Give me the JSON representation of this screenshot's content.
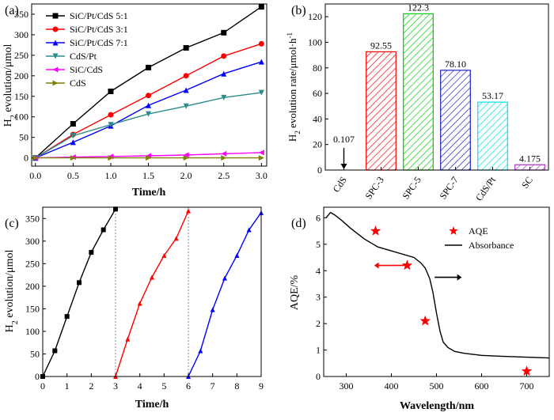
{
  "colors": {
    "black": "#000000",
    "red": "#ff0000",
    "blue": "#0000ff",
    "teal": "#2e8b8b",
    "magenta": "#ff00ff",
    "olive": "#808000",
    "green": "#00cc00",
    "cyan": "#00e5e5",
    "purple": "#b030d0",
    "navy": "#2020c0"
  },
  "chart_data": [
    {
      "panel": "(a)",
      "type": "line",
      "xlabel": "Time/h",
      "ylabel": "H2 evolution/μmol",
      "xlim": [
        0,
        3
      ],
      "ylim": [
        -20,
        375
      ],
      "xticks": [
        "0.0",
        "0.5",
        "1.0",
        "1.5",
        "2.0",
        "2.5",
        "3.0"
      ],
      "yticks": [
        "0",
        "50",
        "100",
        "150",
        "200",
        "250",
        "300",
        "350"
      ],
      "legend_position": "top-left",
      "x": [
        0,
        0.5,
        1.0,
        1.5,
        2.0,
        2.5,
        3.0
      ],
      "series": [
        {
          "name": "SiC/Pt/CdS 5:1",
          "marker": "square",
          "color": "#000000",
          "values": [
            0,
            83,
            162,
            220,
            268,
            305,
            368
          ]
        },
        {
          "name": "SiC/Pt/CdS 3:1",
          "marker": "circle",
          "color": "#ff0000",
          "values": [
            0,
            57,
            105,
            152,
            200,
            248,
            278
          ]
        },
        {
          "name": "SiC/Pt/CdS 7:1",
          "marker": "triangle-up",
          "color": "#0000ff",
          "values": [
            0,
            38,
            78,
            128,
            165,
            205,
            234
          ]
        },
        {
          "name": "CdS/Pt",
          "marker": "triangle-down",
          "color": "#2e8b8b",
          "values": [
            0,
            54,
            81,
            107,
            126,
            147,
            159
          ]
        },
        {
          "name": "SiC/CdS",
          "marker": "triangle-left",
          "color": "#ff00ff",
          "values": [
            0,
            2,
            3.5,
            5,
            7,
            10,
            13
          ]
        },
        {
          "name": "CdS",
          "marker": "triangle-right",
          "color": "#808000",
          "values": [
            0,
            0,
            0,
            0,
            0,
            0,
            0
          ]
        }
      ]
    },
    {
      "panel": "(b)",
      "type": "bar",
      "ylabel": "H2 evolution rate/μmol·h-1",
      "ylim": [
        0,
        130
      ],
      "yticks": [
        "0",
        "20",
        "40",
        "60",
        "80",
        "100",
        "120"
      ],
      "categories": [
        "CdS",
        "SPC-3",
        "SPC-5",
        "SPC-7",
        "CdS/Pt",
        "SC"
      ],
      "values": [
        0.107,
        92.55,
        122.3,
        78.1,
        53.17,
        4.175
      ],
      "data_labels": [
        "0.107",
        "92.55",
        "122.3",
        "78.10",
        "53.17",
        "4.175"
      ],
      "bar_colors": [
        "#000000",
        "#ff0000",
        "#00cc00",
        "#2020c0",
        "#00e5e5",
        "#b030d0"
      ],
      "fill": "hatched"
    },
    {
      "panel": "(c)",
      "type": "line",
      "xlabel": "Time/h",
      "ylabel": "H2 evolution/μmol",
      "xlim": [
        0,
        9
      ],
      "ylim": [
        0,
        375
      ],
      "xticks": [
        "0",
        "1",
        "2",
        "3",
        "4",
        "5",
        "6",
        "7",
        "8",
        "9"
      ],
      "yticks": [
        "0",
        "50",
        "100",
        "150",
        "200",
        "250",
        "300",
        "350"
      ],
      "separators_x": [
        3,
        6
      ],
      "series": [
        {
          "color": "#000000",
          "marker": "square",
          "x": [
            0,
            0.5,
            1.0,
            1.5,
            2.0,
            2.5,
            3.0
          ],
          "values": [
            0,
            57,
            133,
            208,
            275,
            325,
            371
          ]
        },
        {
          "color": "#ff0000",
          "marker": "triangle-up",
          "x": [
            3.0,
            3.5,
            4.0,
            4.5,
            5.0,
            5.5,
            6.0
          ],
          "values": [
            0,
            83,
            162,
            220,
            268,
            306,
            367
          ]
        },
        {
          "color": "#0000ff",
          "marker": "triangle-up",
          "x": [
            6.0,
            6.5,
            7.0,
            7.5,
            8.0,
            8.5,
            9.0
          ],
          "values": [
            0,
            57,
            148,
            218,
            268,
            325,
            363
          ]
        }
      ]
    },
    {
      "panel": "(d)",
      "type": "scatter",
      "xlabel": "Wavelength/nm",
      "ylabel": "AQE/%",
      "xlim": [
        250,
        750
      ],
      "ylim": [
        0,
        6.4
      ],
      "xticks": [
        "300",
        "400",
        "500",
        "600",
        "700"
      ],
      "yticks": [
        "0",
        "1",
        "2",
        "3",
        "4",
        "5",
        "6"
      ],
      "legend_position": "top-right",
      "series": [
        {
          "name": "AQE",
          "marker": "star",
          "color": "#ff0000",
          "x": [
            365,
            435,
            475,
            700
          ],
          "values": [
            5.5,
            4.2,
            2.1,
            0.2
          ]
        },
        {
          "name": "Absorbance",
          "type": "line",
          "color": "#000000",
          "x": [
            255,
            265,
            275,
            290,
            310,
            340,
            370,
            400,
            430,
            450,
            465,
            475,
            485,
            492,
            500,
            508,
            515,
            525,
            540,
            560,
            600,
            650,
            700,
            750
          ],
          "values": [
            6.0,
            6.2,
            6.1,
            5.9,
            5.6,
            5.2,
            4.9,
            4.75,
            4.6,
            4.5,
            4.3,
            4.1,
            3.7,
            3.2,
            2.4,
            1.7,
            1.3,
            1.1,
            0.95,
            0.88,
            0.8,
            0.76,
            0.73,
            0.7
          ]
        }
      ]
    }
  ]
}
